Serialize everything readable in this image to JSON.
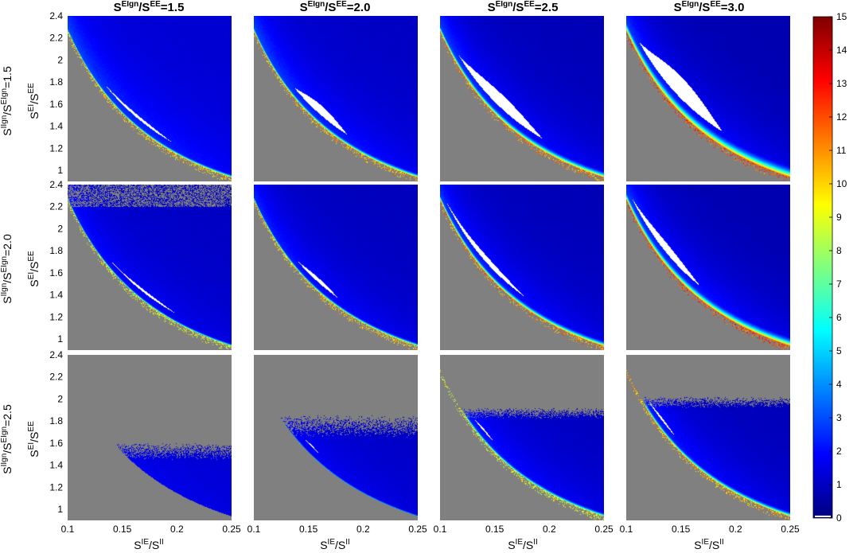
{
  "chart_data": {
    "type": "heatmap",
    "layout": "3x4 grid of heatmap panels with shared colorbar",
    "column_titles": [
      {
        "base": "S",
        "sup1": "EIgn",
        "mid": "/S",
        "sup2": "EE",
        "tail": "=1.5"
      },
      {
        "base": "S",
        "sup1": "EIgn",
        "mid": "/S",
        "sup2": "EE",
        "tail": "=2.0"
      },
      {
        "base": "S",
        "sup1": "EIgn",
        "mid": "/S",
        "sup2": "EE",
        "tail": "=2.5"
      },
      {
        "base": "S",
        "sup1": "EIgn",
        "mid": "/S",
        "sup2": "EE",
        "tail": "=3.0"
      }
    ],
    "row_titles": [
      {
        "base": "S",
        "sup1": "IIgn",
        "mid": "/S",
        "sup2": "EIgn",
        "tail": "=1.5"
      },
      {
        "base": "S",
        "sup1": "IIgn",
        "mid": "/S",
        "sup2": "EIgn",
        "tail": "=2.0"
      },
      {
        "base": "S",
        "sup1": "IIgn",
        "mid": "/S",
        "sup2": "EIgn",
        "tail": "=2.5"
      }
    ],
    "xlabel": {
      "base1": "S",
      "sup1": "IE",
      "mid": "/S",
      "sup2": "II"
    },
    "ylabel": {
      "base1": "S",
      "sup1": "EI",
      "mid": "/S",
      "sup2": "EE"
    },
    "x_ticks": [
      "0.1",
      "0.15",
      "0.2",
      "0.25"
    ],
    "x_tick_values": [
      0.1,
      0.15,
      0.2,
      0.25
    ],
    "y_ticks": [
      "1",
      "1.2",
      "1.4",
      "1.6",
      "1.8",
      "2",
      "2.2",
      "2.4"
    ],
    "y_tick_values": [
      1,
      1.2,
      1.4,
      1.6,
      1.8,
      2,
      2.2,
      2.4
    ],
    "xlim": [
      0.1,
      0.25
    ],
    "ylim": [
      0.9,
      2.4
    ],
    "colorbar": {
      "ticks": [
        "0",
        "1",
        "2",
        "3",
        "4",
        "5",
        "6",
        "7",
        "8",
        "9",
        "10",
        "11",
        "12",
        "13",
        "14",
        "15"
      ],
      "range": [
        0,
        15
      ],
      "colormap": "jet"
    },
    "colors": {
      "invalid_region": "#808080",
      "unstable_region": "#ffffff"
    },
    "panels": [
      {
        "row": 0,
        "col": 0,
        "boundary_c": 0.2218,
        "boundary_curv": 2.36,
        "band_peak": 10,
        "band_width": 0.015,
        "baseline": 1.2,
        "interior_high": 4.5,
        "scatter_top": null,
        "upper_cut": null,
        "white": {
          "x0": 0.134,
          "x1": 0.196,
          "w": 0.03
        }
      },
      {
        "row": 0,
        "col": 1,
        "boundary_c": 0.2218,
        "boundary_curv": 2.36,
        "band_peak": 10.5,
        "band_width": 0.02,
        "baseline": 1.0,
        "interior_high": 5,
        "scatter_top": null,
        "upper_cut": null,
        "white": {
          "x0": 0.137,
          "x1": 0.186,
          "w": 0.09
        }
      },
      {
        "row": 0,
        "col": 2,
        "boundary_c": 0.2218,
        "boundary_curv": 2.36,
        "band_peak": 11,
        "band_width": 0.03,
        "baseline": 0.8,
        "interior_high": 5.5,
        "scatter_top": null,
        "upper_cut": null,
        "white": {
          "x0": 0.117,
          "x1": 0.194,
          "w": 0.13
        }
      },
      {
        "row": 0,
        "col": 3,
        "boundary_c": 0.2218,
        "boundary_curv": 2.36,
        "band_peak": 12,
        "band_width": 0.05,
        "baseline": 0.7,
        "interior_high": 6,
        "scatter_top": null,
        "upper_cut": null,
        "white": {
          "x0": 0.112,
          "x1": 0.188,
          "w": 0.2
        }
      },
      {
        "row": 1,
        "col": 0,
        "boundary_c": 0.2218,
        "boundary_curv": 2.36,
        "band_peak": 9,
        "band_width": 0.012,
        "baseline": 1.0,
        "interior_high": 3,
        "scatter_top": 2.2,
        "upper_cut": null,
        "white": {
          "x0": 0.14,
          "x1": 0.2,
          "w": 0.025
        }
      },
      {
        "row": 1,
        "col": 1,
        "boundary_c": 0.2218,
        "boundary_curv": 2.36,
        "band_peak": 10,
        "band_width": 0.015,
        "baseline": 0.9,
        "interior_high": 4,
        "scatter_top": null,
        "upper_cut": null,
        "white": {
          "x0": 0.14,
          "x1": 0.178,
          "w": 0.04
        }
      },
      {
        "row": 1,
        "col": 2,
        "boundary_c": 0.2218,
        "boundary_curv": 2.36,
        "band_peak": 11,
        "band_width": 0.025,
        "baseline": 0.8,
        "interior_high": 5,
        "scatter_top": null,
        "upper_cut": null,
        "white": {
          "x0": 0.105,
          "x1": 0.178,
          "w": 0.06
        }
      },
      {
        "row": 1,
        "col": 3,
        "boundary_c": 0.2218,
        "boundary_curv": 2.36,
        "band_peak": 12,
        "band_width": 0.04,
        "baseline": 0.7,
        "interior_high": 6,
        "scatter_top": null,
        "upper_cut": null,
        "white": {
          "x0": 0.105,
          "x1": 0.168,
          "w": 0.09
        }
      },
      {
        "row": 2,
        "col": 0,
        "boundary_c": 0.2218,
        "boundary_curv": 2.36,
        "band_peak": 1.5,
        "band_width": 0.01,
        "baseline": 1.2,
        "interior_high": 1.5,
        "scatter_top": 1.6,
        "upper_cut": 1.45,
        "white": null
      },
      {
        "row": 2,
        "col": 1,
        "boundary_c": 0.2218,
        "boundary_curv": 2.36,
        "band_peak": 5,
        "band_width": 0.012,
        "baseline": 1.0,
        "interior_high": 2.5,
        "scatter_top": 1.85,
        "upper_cut": 1.65,
        "white": {
          "x0": 0.145,
          "x1": 0.16,
          "w": 0.015
        }
      },
      {
        "row": 2,
        "col": 2,
        "boundary_c": 0.2218,
        "boundary_curv": 2.36,
        "band_peak": 9,
        "band_width": 0.018,
        "baseline": 0.9,
        "interior_high": 4,
        "scatter_top": 1.92,
        "upper_cut": 1.82,
        "white": {
          "x0": 0.13,
          "x1": 0.15,
          "w": 0.02
        }
      },
      {
        "row": 2,
        "col": 3,
        "boundary_c": 0.2218,
        "boundary_curv": 2.36,
        "band_peak": 10.5,
        "band_width": 0.022,
        "baseline": 0.8,
        "interior_high": 4.5,
        "scatter_top": 2.02,
        "upper_cut": 1.92,
        "white": {
          "x0": 0.12,
          "x1": 0.145,
          "w": 0.025
        }
      }
    ]
  }
}
